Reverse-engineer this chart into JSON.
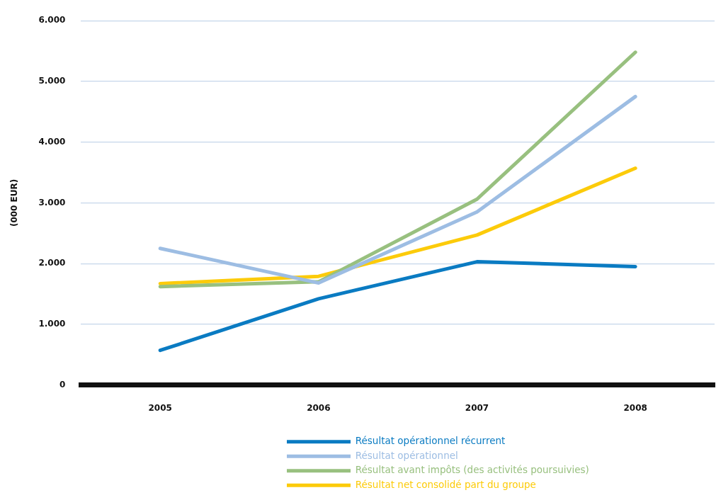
{
  "chart_data": {
    "type": "line",
    "ylabel": "(000 EUR)",
    "categories": [
      "2005",
      "2006",
      "2007",
      "2008"
    ],
    "series": [
      {
        "name": "Résultat opérationnel récurrent",
        "color": "#0a7bc2",
        "values": [
          570,
          1420,
          2030,
          1950
        ]
      },
      {
        "name": "Résultat opérationnel",
        "color": "#9dbde3",
        "values": [
          2250,
          1680,
          2850,
          4750
        ]
      },
      {
        "name": "Résultat avant impôts (des activités poursuivies)",
        "color": "#98c07f",
        "values": [
          1620,
          1700,
          3060,
          5480
        ]
      },
      {
        "name": "Résultat net consolidé part du groupe",
        "color": "#fccb0a",
        "values": [
          1670,
          1790,
          2470,
          3570
        ]
      }
    ],
    "ylim": [
      0,
      6000
    ],
    "yticks": [
      0,
      {
        "value": 1000,
        "label": "1.000"
      },
      {
        "value": 2000,
        "label": "2.000"
      },
      {
        "value": 3000,
        "label": "3.000"
      },
      {
        "value": 4000,
        "label": "4.000"
      },
      {
        "value": 5000,
        "label": "5.000"
      },
      {
        "value": 6000,
        "label": "6.000"
      }
    ],
    "grid": "y",
    "legend": "bottom",
    "marker": "none",
    "line_style": "solid"
  }
}
